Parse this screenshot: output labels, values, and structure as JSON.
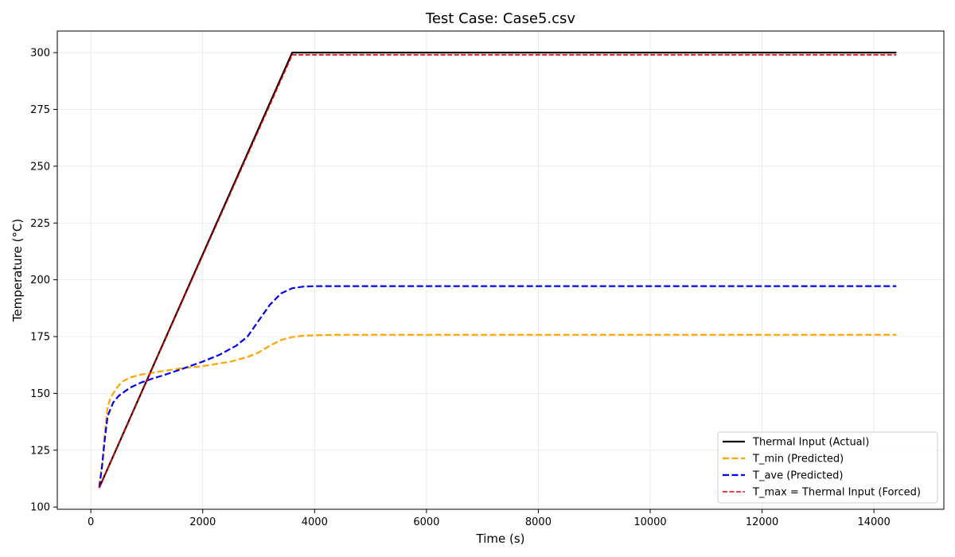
{
  "chart_data": {
    "type": "line",
    "title": "Test Case: Case5.csv",
    "xlabel": "Time (s)",
    "ylabel": "Temperature (°C)",
    "xlim": [
      -600,
      15250
    ],
    "ylim": [
      99,
      309.5
    ],
    "xticks": [
      0,
      2000,
      4000,
      6000,
      8000,
      10000,
      12000,
      14000
    ],
    "yticks": [
      100,
      125,
      150,
      175,
      200,
      225,
      250,
      275,
      300
    ],
    "grid": true,
    "legend_position": "lower-right",
    "series": [
      {
        "name": "Thermal Input (Actual)",
        "color": "#000000",
        "style": "solid",
        "width": 2.2,
        "x": [
          150,
          3600,
          14400
        ],
        "y": [
          108.5,
          300,
          300
        ]
      },
      {
        "name": "T_min (Predicted)",
        "color": "#ffa500",
        "style": "dashed",
        "width": 2.2,
        "x": [
          150,
          200,
          260,
          300,
          350,
          450,
          550,
          700,
          900,
          1200,
          1600,
          2000,
          2500,
          2800,
          3000,
          3200,
          3400,
          3600,
          3800,
          4000,
          4500,
          6000,
          10000,
          14400
        ],
        "y": [
          109,
          118,
          135,
          144,
          148,
          152,
          155,
          157,
          158.3,
          159.5,
          161,
          162,
          164,
          166,
          168,
          171,
          173.5,
          174.8,
          175.4,
          175.6,
          175.8,
          175.8,
          175.8,
          175.8
        ]
      },
      {
        "name": "T_ave (Predicted)",
        "color": "#0000ee",
        "style": "dashed",
        "width": 2.2,
        "x": [
          150,
          200,
          250,
          300,
          400,
          500,
          700,
          900,
          1100,
          1300,
          1600,
          2000,
          2300,
          2600,
          2800,
          3000,
          3200,
          3400,
          3600,
          3800,
          4000,
          5000,
          10000,
          14400
        ],
        "y": [
          108.5,
          118,
          130,
          140,
          146,
          149,
          152.5,
          154.8,
          156.5,
          158,
          160.5,
          164,
          167,
          171,
          175,
          182,
          189,
          194,
          196.3,
          197,
          197.2,
          197.2,
          197.2,
          197.2
        ]
      },
      {
        "name": "T_max = Thermal Input (Forced)",
        "color": "#dd0000",
        "style": "dashed",
        "width": 1.6,
        "x": [
          150,
          3600,
          14400
        ],
        "y": [
          108.5,
          299,
          299
        ]
      }
    ]
  }
}
